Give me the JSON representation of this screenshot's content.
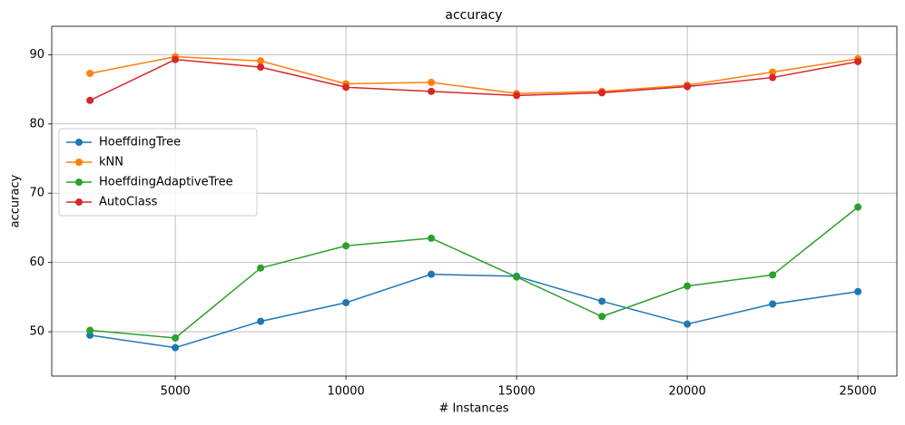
{
  "chart_data": {
    "type": "line",
    "title": "accuracy",
    "xlabel": "# Instances",
    "ylabel": "accuracy",
    "x": [
      2500,
      5000,
      7500,
      10000,
      12500,
      15000,
      17500,
      20000,
      22500,
      25000
    ],
    "series": [
      {
        "name": "HoeffdingTree",
        "color": "#1f77b4",
        "values": [
          49.5,
          47.7,
          51.5,
          54.2,
          58.3,
          58.0,
          54.4,
          51.1,
          54.0,
          55.8
        ]
      },
      {
        "name": "kNN",
        "color": "#ff7f0e",
        "values": [
          87.3,
          89.7,
          89.1,
          85.8,
          86.0,
          84.4,
          84.7,
          85.6,
          87.5,
          89.4
        ]
      },
      {
        "name": "HoeffdingAdaptiveTree",
        "color": "#2ca02c",
        "values": [
          50.2,
          49.1,
          59.2,
          62.4,
          63.5,
          57.9,
          52.2,
          56.6,
          58.2,
          68.0
        ]
      },
      {
        "name": "AutoClass",
        "color": "#d62728",
        "values": [
          83.4,
          89.3,
          88.2,
          85.3,
          84.7,
          84.1,
          84.5,
          85.4,
          86.7,
          89.0
        ]
      }
    ],
    "xlim": [
      1380,
      26140
    ],
    "ylim": [
      43.6,
      94.1
    ],
    "xticks": [
      5000,
      10000,
      15000,
      20000,
      25000
    ],
    "yticks": [
      50,
      60,
      70,
      80,
      90
    ],
    "grid": true,
    "legend": "center left"
  }
}
